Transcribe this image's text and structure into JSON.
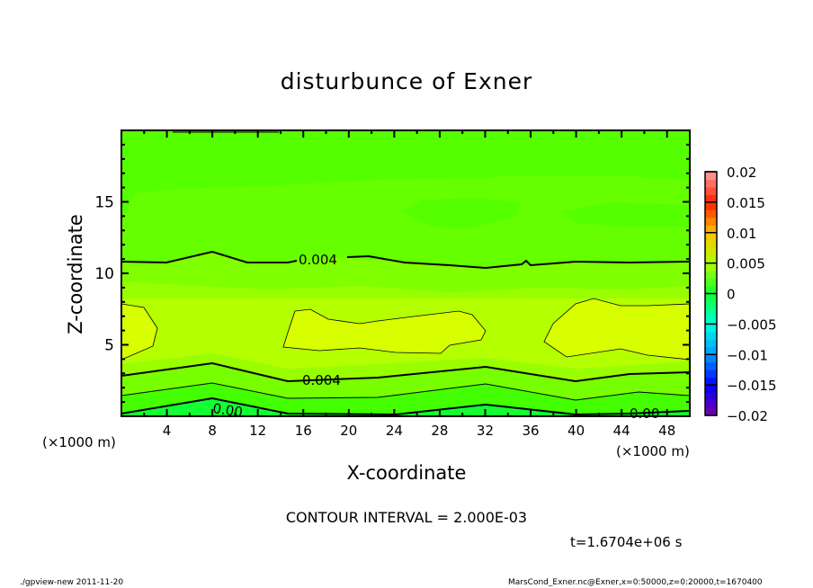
{
  "chart_data": {
    "type": "heatmap",
    "subtype": "filled-contour",
    "title": "disturbunce of Exner",
    "xlabel": "X-coordinate",
    "ylabel": "Z-coordinate",
    "x_unit": "(×1000 m)",
    "y_unit": "(×1000 m)",
    "xlim": [
      0,
      50
    ],
    "ylim": [
      0,
      20
    ],
    "x_ticks": [
      4,
      8,
      12,
      16,
      20,
      24,
      28,
      32,
      36,
      40,
      44,
      48
    ],
    "y_ticks": [
      5,
      10,
      15
    ],
    "contour_interval": "CONTOUR INTERVAL = 2.000E-03",
    "contour_labels": [
      "0.004",
      "0.004",
      "0.00",
      "0.00"
    ],
    "colorbar": {
      "range": [
        -0.02,
        0.02
      ],
      "ticks": [
        "0.02",
        "0.015",
        "0.01",
        "0.005",
        "0",
        "-0.005",
        "-0.01",
        "-0.015",
        "-0.02"
      ],
      "anchors": [
        {
          "v": -0.02,
          "c": "#7a00a8"
        },
        {
          "v": -0.015,
          "c": "#0000ff"
        },
        {
          "v": -0.01,
          "c": "#0099ff"
        },
        {
          "v": -0.005,
          "c": "#00ffe0"
        },
        {
          "v": 0.0,
          "c": "#11ff33"
        },
        {
          "v": 0.005,
          "c": "#b0ff00"
        },
        {
          "v": 0.01,
          "c": "#ffc000"
        },
        {
          "v": 0.015,
          "c": "#ff2000"
        },
        {
          "v": 0.02,
          "c": "#ffa0a0"
        }
      ]
    },
    "time": "t=1.6704e+06 s"
  },
  "footer": {
    "left": "./gpview-new  2011-11-20",
    "right": "MarsCond_Exner.nc@Exner,x=0:50000,z=0:20000,t=1670400"
  }
}
